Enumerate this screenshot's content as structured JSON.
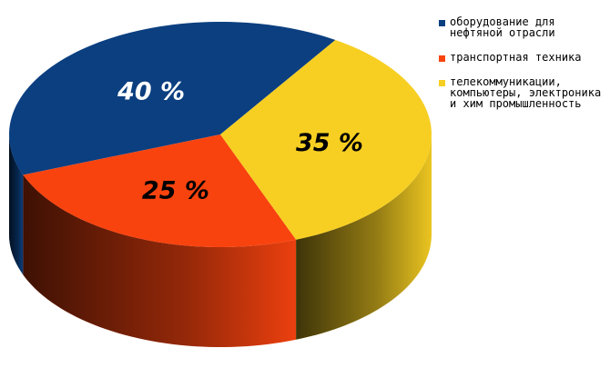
{
  "chart_data": {
    "type": "pie",
    "series": [
      {
        "name": "оборудование для нефтяной отрасли",
        "color": "#0b3f80",
        "values": [
          40
        ],
        "value_labels": [
          "40 %"
        ]
      },
      {
        "name": "транспортная техника",
        "color": "#f8430f",
        "values": [
          25
        ],
        "value_labels": [
          "25 %"
        ]
      },
      {
        "name": "телекоммуникации, компьютеры, электроника и хим промышленность",
        "color": "#f7cf22",
        "values": [
          35
        ],
        "value_labels": [
          "35 %"
        ]
      }
    ]
  }
}
